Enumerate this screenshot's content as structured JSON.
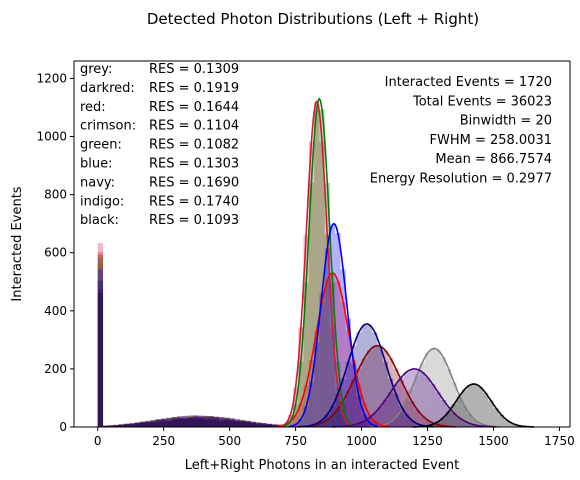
{
  "chart_data": {
    "type": "bar",
    "title": "Detected Photon Distributions (Left + Right)",
    "xlabel": "Left+Right Photons in an interacted Event",
    "ylabel": "Interacted Events",
    "xlim": [
      -90,
      1790
    ],
    "ylim": [
      0,
      1260
    ],
    "xticks": [
      0,
      250,
      500,
      750,
      1000,
      1250,
      1500,
      1750
    ],
    "yticks": [
      0,
      200,
      400,
      600,
      800,
      1000,
      1200
    ],
    "grid": false,
    "legend_position": "top-left",
    "resolutions": [
      {
        "name": "grey:",
        "res": "RES = 0.1309"
      },
      {
        "name": "darkred:",
        "res": "RES = 0.1919"
      },
      {
        "name": "red:",
        "res": "RES = 0.1644"
      },
      {
        "name": "crimson:",
        "res": "RES = 0.1104"
      },
      {
        "name": "green:",
        "res": "RES = 0.1082"
      },
      {
        "name": "blue:",
        "res": "RES = 0.1303"
      },
      {
        "name": "navy:",
        "res": "RES = 0.1690"
      },
      {
        "name": "indigo:",
        "res": "RES = 0.1740"
      },
      {
        "name": "black:",
        "res": "RES = 0.1093"
      }
    ],
    "stats": [
      "Interacted Events = 1720",
      "Total Events = 36023",
      "Binwidth = 20",
      "FWHM = 258.0031",
      "Mean = 866.7574",
      "Energy Resolution = 0.2977"
    ],
    "bin_width": 20,
    "series": [
      {
        "color": "#808080",
        "mean": 1275,
        "amplitude": 270,
        "sigma": 71,
        "zero_bin": 560
      },
      {
        "color": "#8b0000",
        "mean": 1060,
        "amplitude": 280,
        "sigma": 86,
        "zero_bin": 590
      },
      {
        "color": "#ff0000",
        "mean": 890,
        "amplitude": 530,
        "sigma": 62,
        "zero_bin": 600
      },
      {
        "color": "#dc143c",
        "mean": 830,
        "amplitude": 1120,
        "sigma": 39,
        "zero_bin": 630
      },
      {
        "color": "#008000",
        "mean": 840,
        "amplitude": 1130,
        "sigma": 39,
        "zero_bin": 580
      },
      {
        "color": "#0000ff",
        "mean": 895,
        "amplitude": 700,
        "sigma": 49,
        "zero_bin": 540
      },
      {
        "color": "#000080",
        "mean": 1020,
        "amplitude": 355,
        "sigma": 73,
        "zero_bin": 500
      },
      {
        "color": "#4b0082",
        "mean": 1200,
        "amplitude": 200,
        "sigma": 89,
        "zero_bin": 470
      },
      {
        "color": "#000000",
        "mean": 1425,
        "amplitude": 148,
        "sigma": 66,
        "zero_bin": 460
      }
    ]
  }
}
